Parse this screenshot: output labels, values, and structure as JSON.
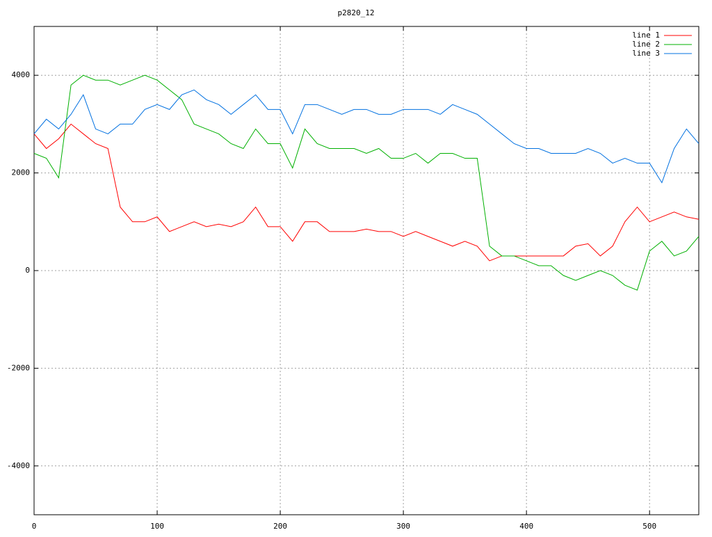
{
  "chart_data": {
    "type": "line",
    "title": "p2820_12",
    "x": [
      0,
      10,
      20,
      30,
      40,
      50,
      60,
      70,
      80,
      90,
      100,
      110,
      120,
      130,
      140,
      150,
      160,
      170,
      180,
      190,
      200,
      210,
      220,
      230,
      240,
      250,
      260,
      270,
      280,
      290,
      300,
      310,
      320,
      330,
      340,
      350,
      360,
      370,
      380,
      390,
      400,
      410,
      420,
      430,
      440,
      450,
      460,
      470,
      480,
      490,
      500,
      510,
      520,
      530,
      540
    ],
    "series": [
      {
        "name": "line 1",
        "color": "#ff0000",
        "values": [
          2800,
          2500,
          2700,
          3000,
          2800,
          2600,
          2500,
          1300,
          1000,
          1000,
          1100,
          800,
          900,
          1000,
          900,
          950,
          900,
          1000,
          1300,
          900,
          900,
          600,
          1000,
          1000,
          800,
          800,
          800,
          850,
          800,
          800,
          700,
          800,
          700,
          600,
          500,
          600,
          500,
          200,
          300,
          300,
          300,
          300,
          300,
          300,
          500,
          550,
          300,
          500,
          1000,
          1300,
          1000,
          1100,
          1200,
          1100,
          1050
        ]
      },
      {
        "name": "line 2",
        "color": "#00b000",
        "values": [
          2400,
          2300,
          1900,
          3800,
          4000,
          3900,
          3900,
          3800,
          3900,
          4000,
          3900,
          3700,
          3500,
          3000,
          2900,
          2800,
          2600,
          2500,
          2900,
          2600,
          2600,
          2100,
          2900,
          2600,
          2500,
          2500,
          2500,
          2400,
          2500,
          2300,
          2300,
          2400,
          2200,
          2400,
          2400,
          2300,
          2300,
          500,
          300,
          300,
          200,
          100,
          100,
          -100,
          -200,
          -100,
          0,
          -100,
          -300,
          -400,
          400,
          600,
          300,
          400,
          700
        ]
      },
      {
        "name": "line 3",
        "color": "#0070e0",
        "values": [
          2800,
          3100,
          2900,
          3200,
          3600,
          2900,
          2800,
          3000,
          3000,
          3300,
          3400,
          3300,
          3600,
          3700,
          3500,
          3400,
          3200,
          3400,
          3600,
          3300,
          3300,
          2800,
          3400,
          3400,
          3300,
          3200,
          3300,
          3300,
          3200,
          3200,
          3300,
          3300,
          3300,
          3200,
          3400,
          3300,
          3200,
          3000,
          2800,
          2600,
          2500,
          2500,
          2400,
          2400,
          2400,
          2500,
          2400,
          2200,
          2300,
          2200,
          2200,
          1800,
          2500,
          2900,
          2600
        ]
      }
    ],
    "xlim": [
      0,
      540
    ],
    "ylim": [
      -5000,
      5000
    ],
    "xticks": [
      0,
      100,
      200,
      300,
      400,
      500
    ],
    "yticks": [
      -4000,
      -2000,
      0,
      2000,
      4000
    ],
    "grid": true,
    "legend": "top-right"
  }
}
